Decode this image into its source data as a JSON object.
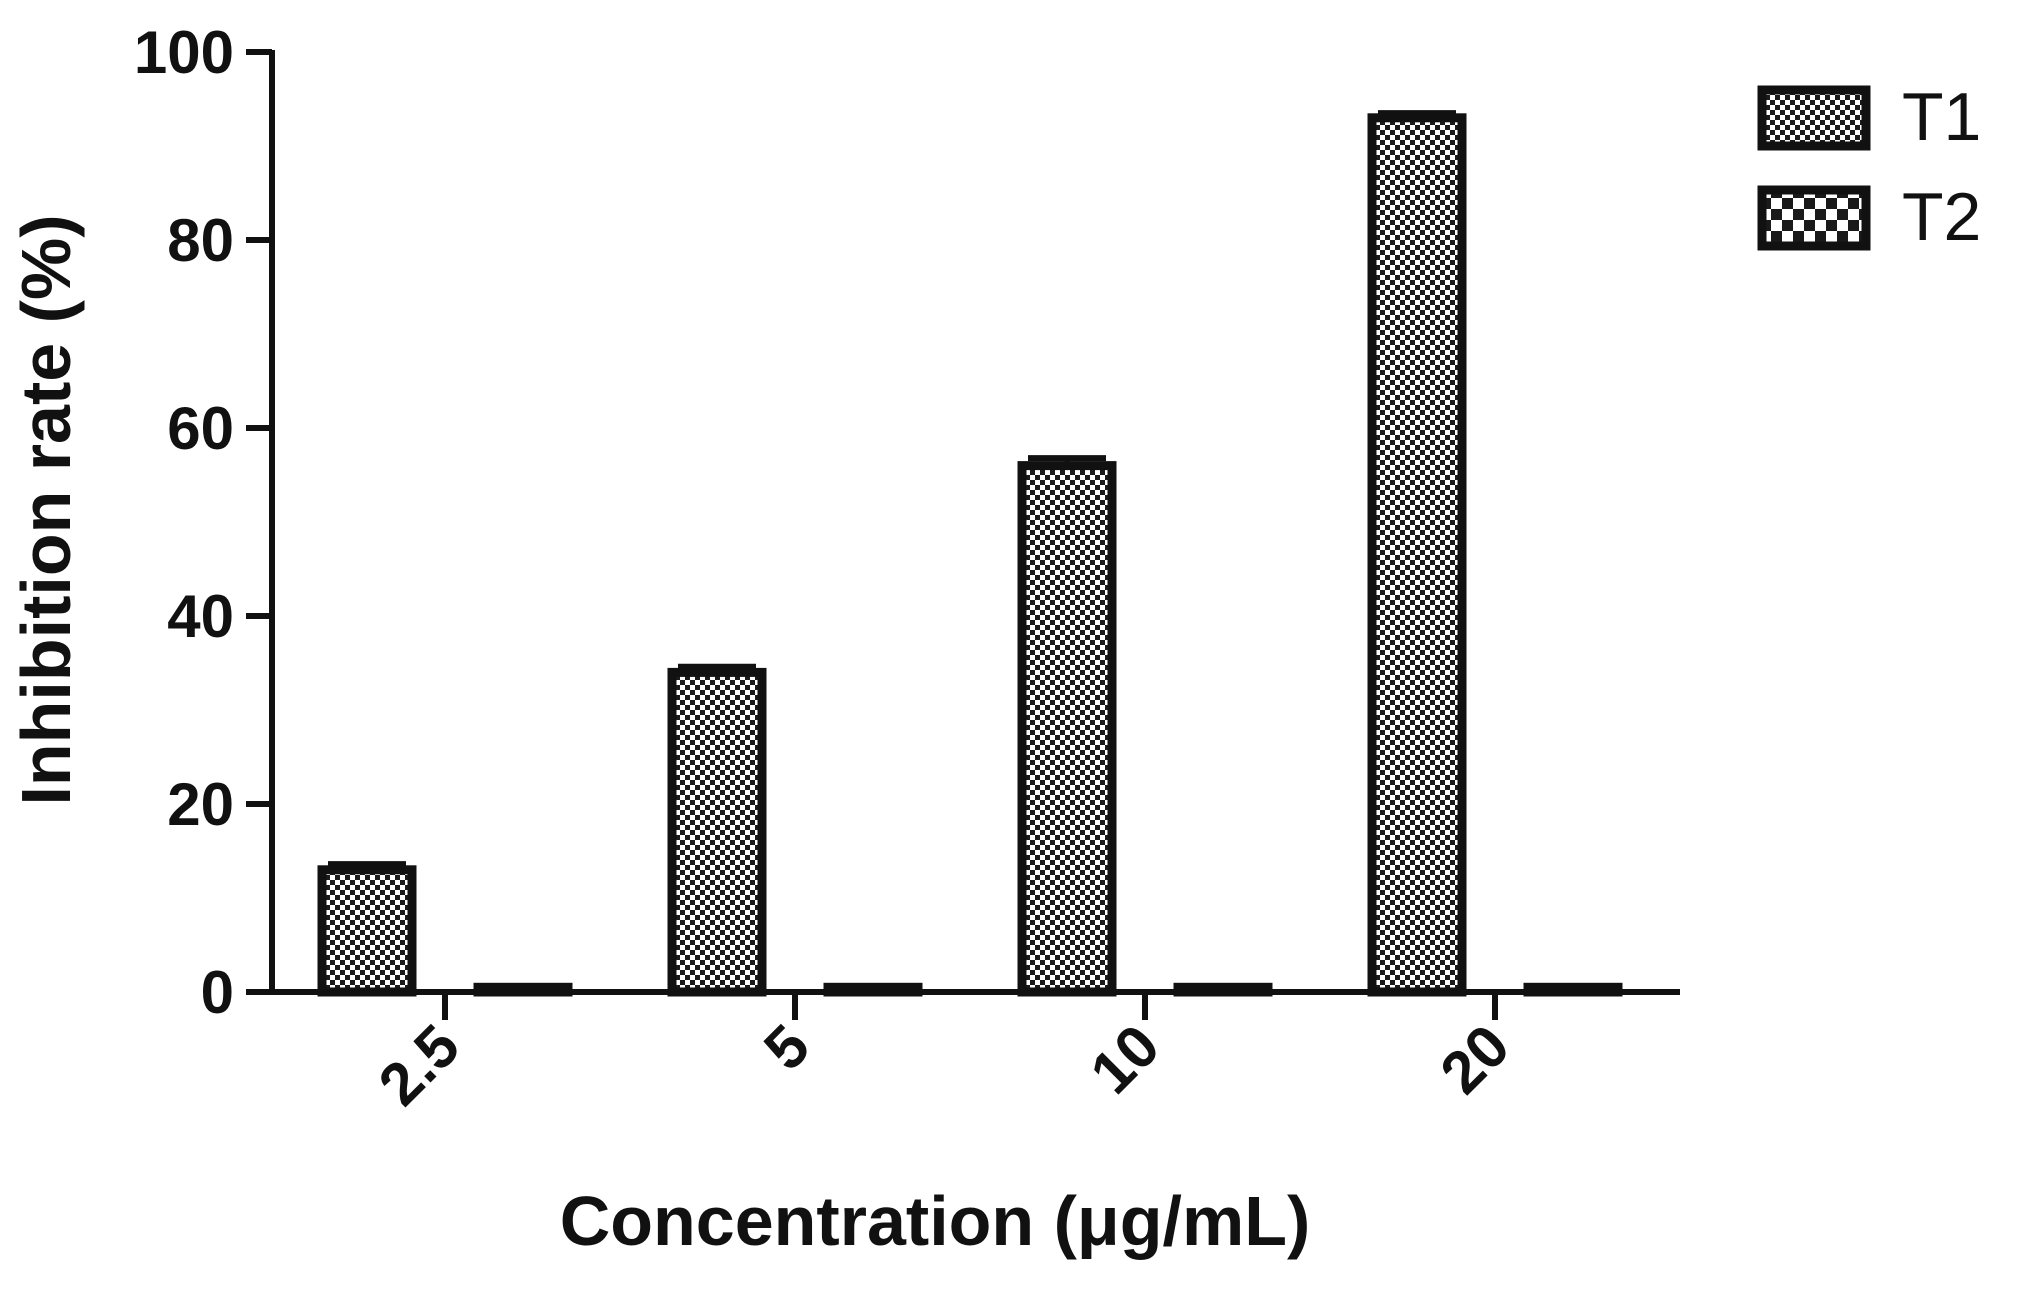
{
  "chart_data": {
    "type": "bar",
    "xlabel": "Concentration (μg/mL)",
    "ylabel": "Inhibition rate (%)",
    "categories": [
      "2.5",
      "5",
      "10",
      "20"
    ],
    "ylim": [
      0,
      100
    ],
    "yticks": [
      "0",
      "20",
      "40",
      "60",
      "80",
      "100"
    ],
    "series": [
      {
        "name": "T1",
        "values": [
          13,
          34,
          56,
          93
        ],
        "errors": [
          0.6,
          0.6,
          0.8,
          0.5
        ],
        "pattern": "fine-checker"
      },
      {
        "name": "T2",
        "values": [
          0.5,
          0.5,
          0.5,
          0.5
        ],
        "errors": [
          0,
          0,
          0,
          0
        ],
        "pattern": "coarse-checker"
      }
    ],
    "legend_position": "top-right",
    "grid": false,
    "colors": {
      "stroke": "#111111",
      "fill": "#ffffff"
    }
  }
}
